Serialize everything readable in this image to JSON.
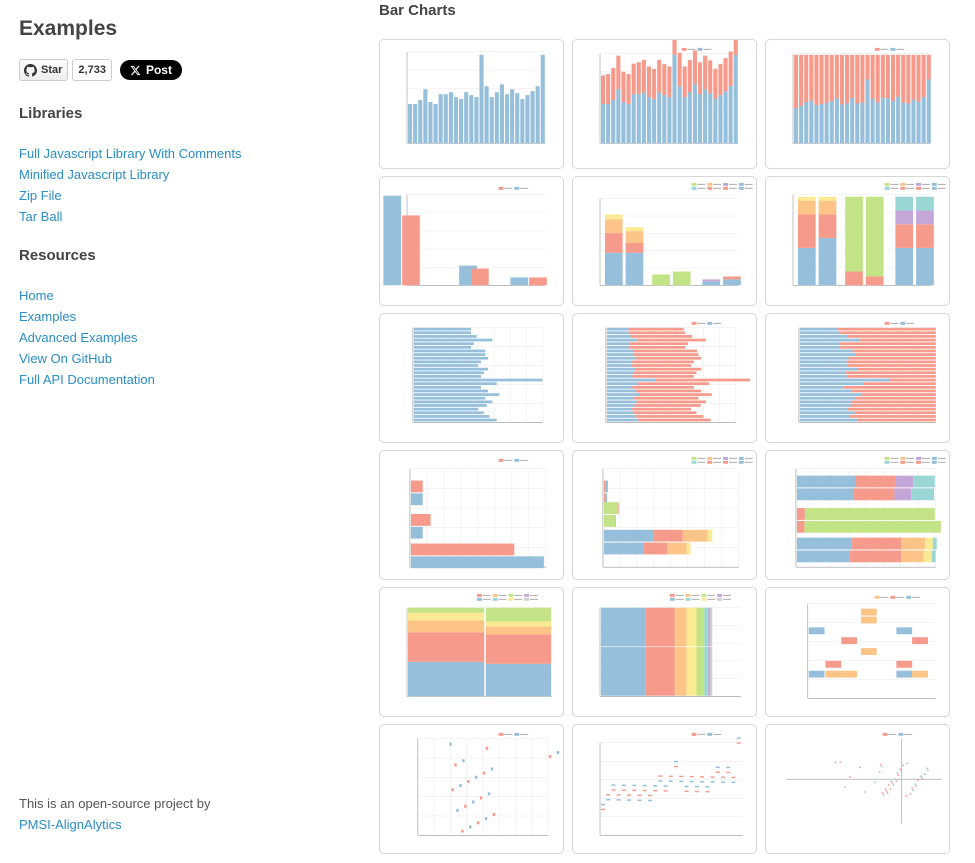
{
  "sidebar": {
    "title": "Examples",
    "social": {
      "star_label": "Star",
      "star_count": "2,733",
      "post_label": "Post"
    },
    "libraries": {
      "heading": "Libraries",
      "links": [
        "Full Javascript Library With Comments",
        "Minified Javascript Library",
        "Zip File",
        "Tar Ball"
      ]
    },
    "resources": {
      "heading": "Resources",
      "links": [
        "Home",
        "Examples",
        "Advanced Examples",
        "View On GitHub",
        "Full API Documentation"
      ]
    },
    "footer": {
      "text": "This is an open-source project by",
      "link": "PMSI-AlignAlytics"
    }
  },
  "main": {
    "heading": "Bar Charts",
    "colors": {
      "blue": "#95bfdb",
      "red": "#f69a8b",
      "green": "#c2e487",
      "orange": "#fcc487",
      "yellow": "#fbea94",
      "purple": "#c5a6d8",
      "teal": "#9ad7d4",
      "grey": "#cfcfcf"
    },
    "thumbnails": [
      {
        "name": "vertical-bar"
      },
      {
        "name": "vertical-stacked-bar"
      },
      {
        "name": "vertical-100pct-bar"
      },
      {
        "name": "vertical-grouped-bar"
      },
      {
        "name": "vertical-grouped-stacked-bar"
      },
      {
        "name": "vertical-grouped-100pct-bar"
      },
      {
        "name": "horizontal-bar"
      },
      {
        "name": "horizontal-stacked-bar"
      },
      {
        "name": "horizontal-100pct-bar"
      },
      {
        "name": "horizontal-grouped-bar"
      },
      {
        "name": "horizontal-grouped-stacked-bar"
      },
      {
        "name": "horizontal-grouped-100pct-bar"
      },
      {
        "name": "vertical-marimekko"
      },
      {
        "name": "horizontal-marimekko"
      },
      {
        "name": "block-matrix"
      },
      {
        "name": "vertical-floating-bar"
      },
      {
        "name": "horizontal-floating-bar"
      },
      {
        "name": "scatter-floating-bar"
      }
    ]
  }
}
